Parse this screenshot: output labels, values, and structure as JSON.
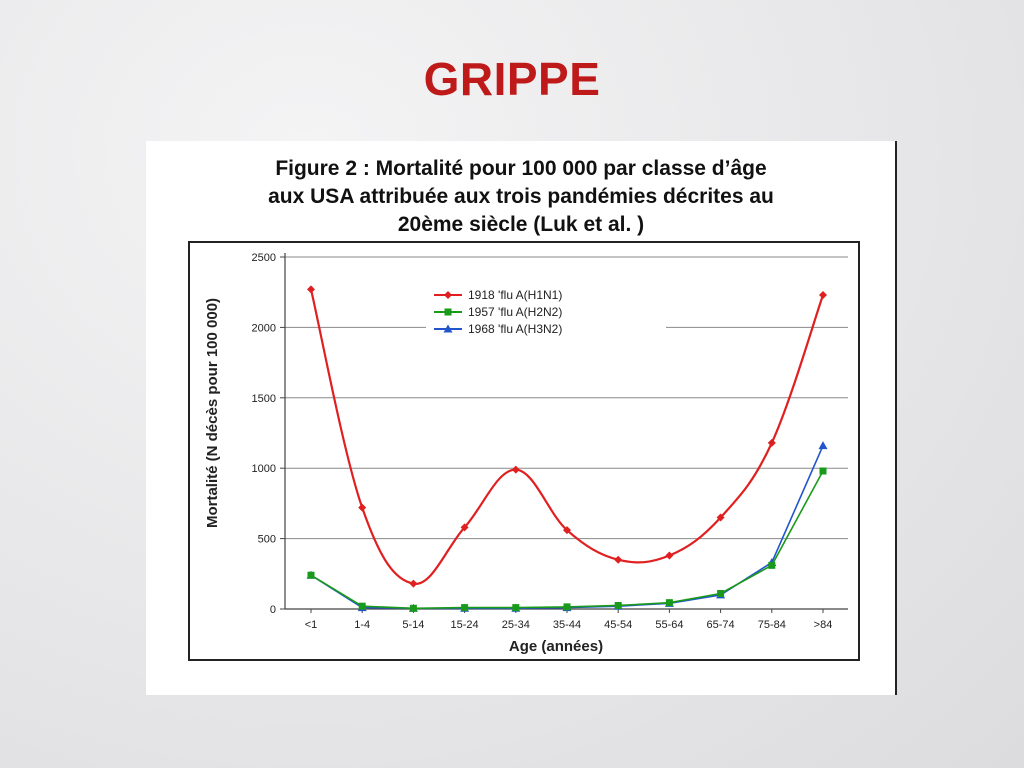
{
  "slide": {
    "title": "GRIPPE"
  },
  "figure": {
    "caption_line1": "Figure 2 : Mortalité pour 100 000 par classe d’âge",
    "caption_line2": "aux USA attribuée aux trois pandémies décrites au",
    "caption_line3": "20ème siècle (Luk et al. )"
  },
  "chart_data": {
    "type": "line",
    "xlabel": "Age (années)",
    "ylabel": "Mortalité (N décès pour 100 000)",
    "categories": [
      "<1",
      "1-4",
      "5-14",
      "15-24",
      "25-34",
      "35-44",
      "45-54",
      "55-64",
      "65-74",
      "75-84",
      ">84"
    ],
    "ylim": [
      0,
      2500
    ],
    "yticks": [
      0,
      500,
      1000,
      1500,
      2000,
      2500
    ],
    "grid": true,
    "legend_position": "top-center",
    "series": [
      {
        "name": "1918 'flu A(H1N1)",
        "color": "#e02020",
        "marker": "diamond",
        "values": [
          2270,
          720,
          180,
          580,
          990,
          560,
          350,
          380,
          650,
          1180,
          2230
        ]
      },
      {
        "name": "1957 'flu A(H2N2)",
        "color": "#1a9a1a",
        "marker": "square",
        "values": [
          240,
          20,
          5,
          10,
          10,
          15,
          25,
          45,
          110,
          310,
          980
        ]
      },
      {
        "name": "1968 'flu A(H3N2)",
        "color": "#2255cc",
        "marker": "triangle",
        "values": [
          240,
          10,
          5,
          5,
          5,
          10,
          20,
          40,
          100,
          330,
          1160
        ]
      }
    ]
  }
}
